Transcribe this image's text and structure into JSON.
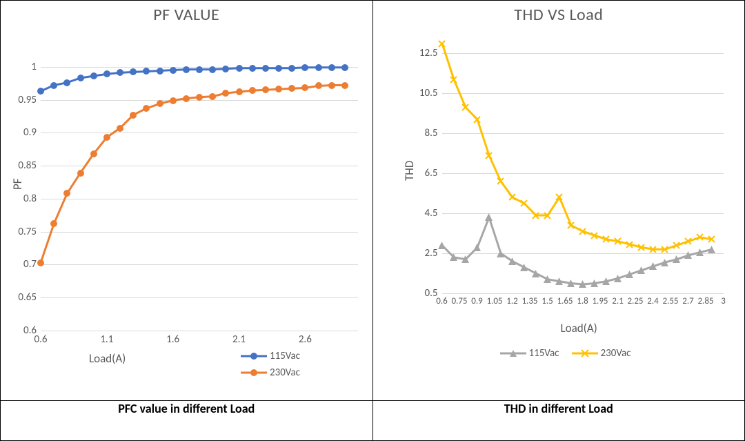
{
  "pf_chart": {
    "title": "PF VALUE",
    "title_fontsize": 24,
    "caption": "PFC value in different Load",
    "ylabel": "PF",
    "xlabel": "Load(A)",
    "label_fontsize": 17,
    "tick_fontsize": 15,
    "background_color": "#ffffff",
    "grid_color": "#d9d9d9",
    "xlim": [
      0.6,
      3.0
    ],
    "ylim": [
      0.6,
      1.05
    ],
    "yticks": [
      0.6,
      0.65,
      0.7,
      0.75,
      0.8,
      0.85,
      0.9,
      0.95,
      1
    ],
    "xticks": [
      0.6,
      1.1,
      1.6,
      2.1,
      2.6
    ],
    "x_values": [
      0.6,
      0.7,
      0.8,
      0.9,
      1.0,
      1.1,
      1.2,
      1.3,
      1.4,
      1.5,
      1.6,
      1.7,
      1.8,
      1.9,
      2.0,
      2.1,
      2.2,
      2.3,
      2.4,
      2.5,
      2.6,
      2.7,
      2.8,
      2.9
    ],
    "series": [
      {
        "name": "115Vac",
        "color": "#4472c4",
        "marker": "circle",
        "line_width": 3,
        "marker_size": 10,
        "y_values": [
          0.963,
          0.972,
          0.976,
          0.983,
          0.986,
          0.989,
          0.991,
          0.992,
          0.993,
          0.994,
          0.995,
          0.996,
          0.996,
          0.996,
          0.997,
          0.998,
          0.998,
          0.998,
          0.998,
          0.998,
          0.999,
          0.999,
          0.999,
          0.999
        ]
      },
      {
        "name": "230Vac",
        "color": "#ed7d31",
        "marker": "circle",
        "line_width": 3,
        "marker_size": 10,
        "y_values": [
          0.703,
          0.762,
          0.808,
          0.839,
          0.868,
          0.893,
          0.907,
          0.927,
          0.937,
          0.944,
          0.949,
          0.952,
          0.954,
          0.955,
          0.96,
          0.962,
          0.964,
          0.965,
          0.966,
          0.967,
          0.968,
          0.971,
          0.972,
          0.972
        ]
      }
    ],
    "legend_labels": [
      "115Vac",
      "230Vac"
    ]
  },
  "thd_chart": {
    "title": "THD VS Load",
    "title_fontsize": 24,
    "caption": "THD in different Load",
    "ylabel": "THD",
    "xlabel": "Load(A)",
    "label_fontsize": 17,
    "tick_fontsize": 15,
    "background_color": "#ffffff",
    "grid_color": "#d9d9d9",
    "xlim": [
      0.6,
      3.0
    ],
    "ylim": [
      0.5,
      13.0
    ],
    "yticks": [
      0.5,
      2.5,
      4.5,
      6.5,
      8.5,
      10.5,
      12.5
    ],
    "xticks": [
      0.6,
      0.75,
      0.9,
      1.05,
      1.2,
      1.35,
      1.5,
      1.65,
      1.8,
      1.95,
      2.1,
      2.25,
      2.4,
      2.55,
      2.7,
      2.85,
      3
    ],
    "xtick_labels": [
      "0.6",
      "0.75",
      "0.9",
      "1.05",
      "1.2",
      "1.35",
      "1.5",
      "1.65",
      "1.8",
      "1.95",
      "2.1",
      "2.25",
      "2.4",
      "2.55",
      "2.7",
      "2.85",
      "3"
    ],
    "x_values": [
      0.6,
      0.7,
      0.8,
      0.9,
      1.0,
      1.1,
      1.2,
      1.3,
      1.4,
      1.5,
      1.6,
      1.7,
      1.8,
      1.9,
      2.0,
      2.1,
      2.2,
      2.3,
      2.4,
      2.5,
      2.6,
      2.7,
      2.8,
      2.9
    ],
    "series": [
      {
        "name": "115Vac",
        "color": "#a6a6a6",
        "marker": "triangle",
        "line_width": 3,
        "marker_size": 11,
        "y_values": [
          2.9,
          2.3,
          2.2,
          2.8,
          4.3,
          2.5,
          2.1,
          1.8,
          1.5,
          1.2,
          1.1,
          1.0,
          0.95,
          1.0,
          1.1,
          1.25,
          1.45,
          1.65,
          1.85,
          2.05,
          2.2,
          2.4,
          2.55,
          2.7
        ]
      },
      {
        "name": "230Vac",
        "color": "#ffc000",
        "marker": "x",
        "line_width": 3,
        "marker_size": 11,
        "y_values": [
          13.0,
          11.2,
          9.8,
          9.2,
          7.4,
          6.1,
          5.3,
          5.0,
          4.4,
          4.4,
          5.3,
          3.9,
          3.6,
          3.4,
          3.2,
          3.1,
          2.95,
          2.8,
          2.7,
          2.7,
          2.9,
          3.1,
          3.3,
          3.2
        ]
      }
    ],
    "legend_labels": [
      "115Vac",
      "230Vac"
    ]
  }
}
